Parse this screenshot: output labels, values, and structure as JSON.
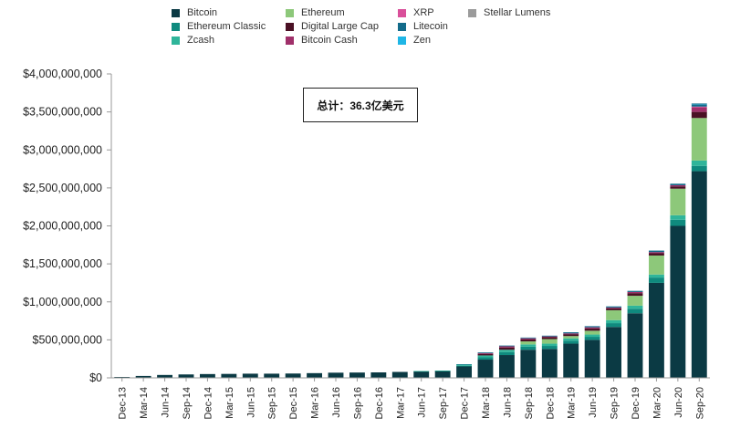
{
  "chart_data": {
    "type": "bar",
    "stacked": true,
    "annotation": "总计：36.3亿美元",
    "ylim": [
      0,
      4000000000
    ],
    "y_ticks": [
      "$0",
      "$500,000,000",
      "$1,000,000,000",
      "$1,500,000,000",
      "$2,000,000,000",
      "$2,500,000,000",
      "$3,000,000,000",
      "$3,500,000,000",
      "$4,000,000,000"
    ],
    "y_tick_values": [
      0,
      500000000,
      1000000000,
      1500000000,
      2000000000,
      2500000000,
      3000000000,
      3500000000,
      4000000000
    ],
    "grid": false,
    "legend_position": "top",
    "categories": [
      "Dec-13",
      "Mar-14",
      "Jun-14",
      "Sep-14",
      "Dec-14",
      "Mar-15",
      "Jun-15",
      "Sep-15",
      "Dec-15",
      "Mar-16",
      "Jun-16",
      "Sep-16",
      "Dec-16",
      "Mar-17",
      "Jun-17",
      "Sep-17",
      "Dec-17",
      "Mar-18",
      "Jun-18",
      "Sep-18",
      "Dec-18",
      "Mar-19",
      "Jun-19",
      "Sep-19",
      "Dec-19",
      "Mar-20",
      "Jun-20",
      "Sep-20"
    ],
    "series": [
      {
        "name": "Bitcoin",
        "color": "#0b3a44",
        "values": [
          12000000,
          25000000,
          38000000,
          45000000,
          50000000,
          52000000,
          55000000,
          55000000,
          57000000,
          62000000,
          68000000,
          70000000,
          72000000,
          78000000,
          85000000,
          90000000,
          150000000,
          240000000,
          300000000,
          370000000,
          380000000,
          450000000,
          500000000,
          670000000,
          850000000,
          1250000000,
          2000000000,
          2720000000
        ]
      },
      {
        "name": "Ethereum Classic",
        "color": "#0f8a7e",
        "values": [
          0,
          0,
          0,
          0,
          0,
          0,
          0,
          0,
          0,
          0,
          0,
          0,
          0,
          0,
          3000000,
          3000000,
          10000000,
          30000000,
          40000000,
          40000000,
          40000000,
          40000000,
          40000000,
          50000000,
          60000000,
          70000000,
          80000000,
          70000000
        ]
      },
      {
        "name": "Zcash",
        "color": "#2fb59a",
        "values": [
          0,
          0,
          0,
          0,
          0,
          0,
          0,
          0,
          0,
          0,
          0,
          0,
          0,
          0,
          2000000,
          3000000,
          15000000,
          25000000,
          30000000,
          30000000,
          30000000,
          30000000,
          30000000,
          40000000,
          40000000,
          40000000,
          60000000,
          70000000
        ]
      },
      {
        "name": "Ethereum",
        "color": "#8dc87a",
        "values": [
          0,
          0,
          0,
          0,
          0,
          0,
          0,
          0,
          0,
          0,
          0,
          0,
          0,
          0,
          0,
          0,
          0,
          0,
          0,
          40000000,
          60000000,
          30000000,
          50000000,
          130000000,
          130000000,
          250000000,
          350000000,
          560000000
        ]
      },
      {
        "name": "Digital Large Cap",
        "color": "#4a1024",
        "values": [
          0,
          0,
          0,
          0,
          0,
          0,
          0,
          0,
          0,
          0,
          0,
          0,
          0,
          0,
          0,
          0,
          0,
          20000000,
          30000000,
          25000000,
          25000000,
          25000000,
          30000000,
          25000000,
          35000000,
          30000000,
          30000000,
          80000000
        ]
      },
      {
        "name": "Bitcoin Cash",
        "color": "#a0306a",
        "values": [
          0,
          0,
          0,
          0,
          0,
          0,
          0,
          0,
          0,
          0,
          0,
          0,
          0,
          0,
          0,
          0,
          0,
          10000000,
          15000000,
          15000000,
          10000000,
          10000000,
          15000000,
          10000000,
          15000000,
          15000000,
          15000000,
          60000000
        ]
      },
      {
        "name": "XRP",
        "color": "#d94f9a",
        "values": [
          0,
          0,
          0,
          0,
          0,
          0,
          0,
          0,
          0,
          0,
          0,
          0,
          0,
          0,
          0,
          0,
          0,
          0,
          0,
          0,
          0,
          0,
          0,
          0,
          0,
          0,
          0,
          10000000
        ]
      },
      {
        "name": "Litecoin",
        "color": "#136b8a",
        "values": [
          0,
          0,
          0,
          0,
          0,
          0,
          0,
          0,
          0,
          0,
          0,
          0,
          0,
          0,
          0,
          0,
          5000000,
          10000000,
          10000000,
          10000000,
          10000000,
          15000000,
          15000000,
          15000000,
          15000000,
          20000000,
          20000000,
          30000000
        ]
      },
      {
        "name": "Zen",
        "color": "#1fb6e6",
        "values": [
          0,
          0,
          0,
          0,
          0,
          0,
          0,
          0,
          0,
          0,
          0,
          0,
          0,
          0,
          0,
          0,
          0,
          0,
          0,
          0,
          0,
          0,
          0,
          0,
          0,
          0,
          0,
          10000000
        ]
      },
      {
        "name": "Stellar Lumens",
        "color": "#9b9b9b",
        "values": [
          0,
          0,
          0,
          0,
          0,
          0,
          0,
          0,
          0,
          0,
          0,
          0,
          0,
          0,
          0,
          0,
          0,
          0,
          0,
          0,
          0,
          0,
          0,
          0,
          0,
          0,
          0,
          5000000
        ]
      }
    ],
    "legend_order": [
      "Bitcoin",
      "Ethereum",
      "XRP",
      "Stellar Lumens",
      "Ethereum Classic",
      "Digital Large Cap",
      "Litecoin",
      "Zcash",
      "Bitcoin Cash",
      "Zen"
    ]
  }
}
